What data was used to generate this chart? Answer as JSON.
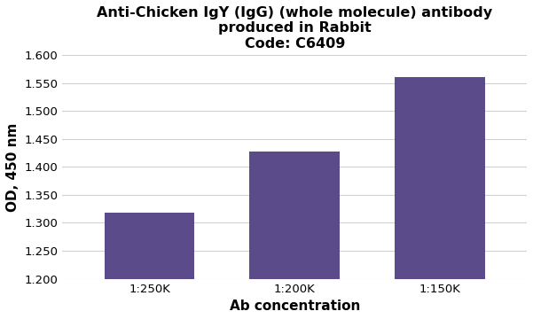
{
  "title_line1": "Anti-Chicken IgY (IgG) (whole molecule) antibody",
  "title_line2": "produced in Rabbit",
  "title_line3": "Code: C6409",
  "categories": [
    "1:250K",
    "1:200K",
    "1:150K"
  ],
  "values": [
    1.318,
    1.428,
    1.56
  ],
  "bar_color": "#5b4b8a",
  "xlabel": "Ab concentration",
  "ylabel": "OD, 450 nm",
  "ylim": [
    1.2,
    1.6
  ],
  "yticks": [
    1.2,
    1.25,
    1.3,
    1.35,
    1.4,
    1.45,
    1.5,
    1.55,
    1.6
  ],
  "background_color": "#ffffff",
  "grid_color": "#d0d0d0",
  "title_fontsize": 11.5,
  "axis_label_fontsize": 11,
  "tick_fontsize": 9.5
}
